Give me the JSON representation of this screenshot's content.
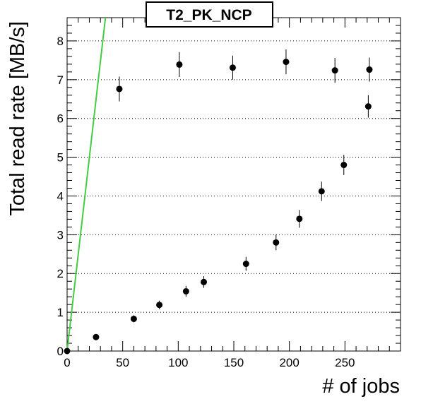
{
  "chart_data": {
    "type": "scatter",
    "title": "T2_PK_NCP",
    "xlabel": "# of jobs",
    "ylabel": "Total read rate [MB/s]",
    "xlim": [
      0,
      300
    ],
    "ylim": [
      0,
      8.6
    ],
    "x_ticks": [
      0,
      50,
      100,
      150,
      200,
      250
    ],
    "y_ticks": [
      0,
      1,
      2,
      3,
      4,
      5,
      6,
      7,
      8
    ],
    "grid": "horizontal-dotted",
    "series": [
      {
        "marker": "circle",
        "color": "#000000",
        "points": [
          {
            "x": 0,
            "y": 0.0,
            "err": 0.02
          },
          {
            "x": 26,
            "y": 0.36,
            "err": 0.03
          },
          {
            "x": 47,
            "y": 6.76,
            "err": 0.32
          },
          {
            "x": 60,
            "y": 0.83,
            "err": 0.09
          },
          {
            "x": 83,
            "y": 1.19,
            "err": 0.11
          },
          {
            "x": 101,
            "y": 7.39,
            "err": 0.32
          },
          {
            "x": 107,
            "y": 1.54,
            "err": 0.14
          },
          {
            "x": 123,
            "y": 1.78,
            "err": 0.15
          },
          {
            "x": 149,
            "y": 7.31,
            "err": 0.31
          },
          {
            "x": 161,
            "y": 2.25,
            "err": 0.18
          },
          {
            "x": 188,
            "y": 2.8,
            "err": 0.2
          },
          {
            "x": 197,
            "y": 7.46,
            "err": 0.32
          },
          {
            "x": 209,
            "y": 3.41,
            "err": 0.23
          },
          {
            "x": 229,
            "y": 4.12,
            "err": 0.25
          },
          {
            "x": 241,
            "y": 7.24,
            "err": 0.32
          },
          {
            "x": 249,
            "y": 4.8,
            "err": 0.26
          },
          {
            "x": 271,
            "y": 6.31,
            "err": 0.29
          },
          {
            "x": 272,
            "y": 7.26,
            "err": 0.31
          }
        ]
      }
    ],
    "reference_line": {
      "color": "#44cc44",
      "from": {
        "x": 0,
        "y": 0
      },
      "to": {
        "x": 34.5,
        "y": 8.6
      }
    }
  }
}
